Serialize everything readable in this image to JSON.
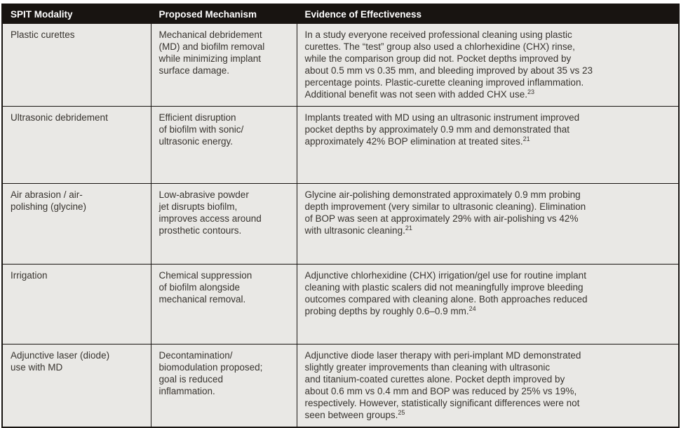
{
  "table": {
    "columns": [
      {
        "label": "SPIT Modality"
      },
      {
        "label": "Proposed Mechanism"
      },
      {
        "label": "Evidence of Effectiveness"
      }
    ],
    "rows": [
      {
        "modality": "Plastic curettes",
        "mechanism": "Mechanical debridement\n(MD) and biofilm removal\nwhile minimizing implant\nsurface damage.",
        "evidence": "In a study everyone received professional cleaning using plastic\ncurettes. The “test” group also used a chlorhexidine (CHX) rinse,\nwhile the comparison group did not. Pocket depths improved by\nabout 0.5 mm vs 0.35 mm, and bleeding improved by about 35 vs 23\npercentage points. Plastic-curette cleaning improved inflammation.\nAdditional benefit was not seen with added CHX use.",
        "citation": "23"
      },
      {
        "modality": "Ultrasonic debridement",
        "mechanism": "Efficient disruption\nof biofilm with sonic/\nultrasonic energy.",
        "evidence": "Implants treated with MD using an ultrasonic instrument improved\npocket depths by approximately 0.9 mm and demonstrated that\napproximately 42% BOP elimination at treated sites.",
        "citation": "21"
      },
      {
        "modality": "Air abrasion / air-\npolishing (glycine)",
        "mechanism": "Low-abrasive powder\njet disrupts biofilm,\nimproves access around\nprosthetic contours.",
        "evidence": "Glycine air-polishing demonstrated approximately 0.9 mm probing\ndepth improvement (very similar to ultrasonic cleaning). Elimination\nof BOP was seen at approximately 29% with air-polishing vs 42%\nwith ultrasonic cleaning.",
        "citation": "21"
      },
      {
        "modality": "Irrigation",
        "mechanism": "Chemical suppression\nof biofilm alongside\nmechanical removal.",
        "evidence": "Adjunctive chlorhexidine (CHX) irrigation/gel use for routine implant\ncleaning with plastic scalers did not meaningfully improve bleeding\noutcomes compared with cleaning alone. Both approaches reduced\nprobing depths by roughly 0.6–0.9 mm.",
        "citation": "24"
      },
      {
        "modality": "Adjunctive laser (diode)\nuse with MD",
        "mechanism": "Decontamination/\nbiomodulation proposed;\ngoal is reduced\ninflammation.",
        "evidence": "Adjunctive diode laser therapy with peri-implant MD demonstrated\nslightly greater improvements than cleaning with ultrasonic\nand titanium-coated curettes alone. Pocket depth improved by\nabout 0.6 mm vs 0.4 mm and BOP was reduced by 25% vs 19%,\nrespectively. However, statistically significant differences were not\nseen between groups.",
        "citation": "25"
      }
    ]
  },
  "colors": {
    "header_bg": "#181411",
    "header_text": "#ffffff",
    "cell_bg": "#e9e8e5",
    "cell_text": "#38342f",
    "border": "#181411"
  }
}
